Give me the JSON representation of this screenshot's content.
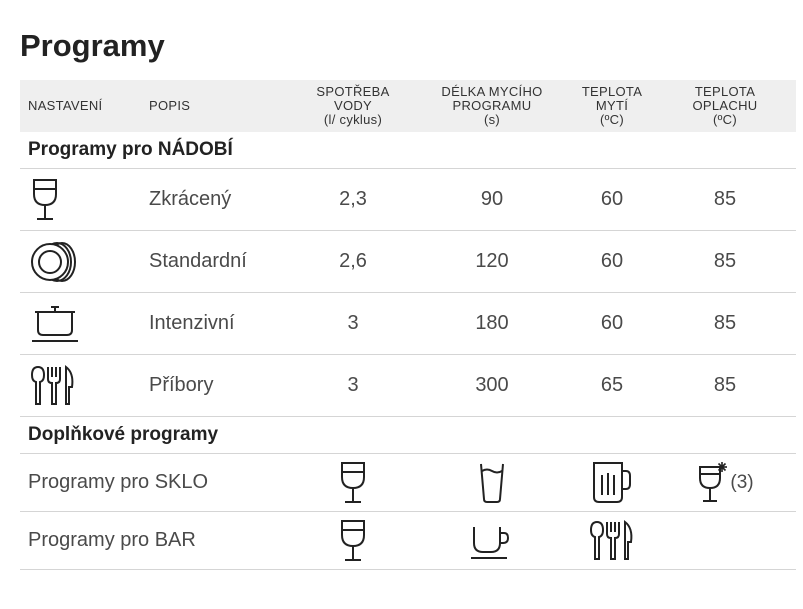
{
  "title": "Programy",
  "header": {
    "nastaveni": "NASTAVENÍ",
    "popis": "POPIS",
    "spotreba": [
      "SPOTŘEBA",
      "VODY",
      "(l/ cyklus)"
    ],
    "delka": [
      "DÉLKA MYCÍHO",
      "PROGRAMU",
      "(s)"
    ],
    "teplota_myti": [
      "TEPLOTA",
      "MYTÍ",
      "(ºC)"
    ],
    "teplota_oplachu": [
      "TEPLOTA",
      "OPLACHU",
      "(ºC)"
    ]
  },
  "section_dishes": "Programy pro NÁDOBÍ",
  "programs": [
    {
      "icon": "wine-glass-icon",
      "name": "Zkrácený",
      "water": "2,3",
      "duration": "90",
      "wash_temp": "60",
      "rinse_temp": "85"
    },
    {
      "icon": "plates-icon",
      "name": "Standardní",
      "water": "2,6",
      "duration": "120",
      "wash_temp": "60",
      "rinse_temp": "85"
    },
    {
      "icon": "pot-icon",
      "name": "Intenzivní",
      "water": "3",
      "duration": "180",
      "wash_temp": "60",
      "rinse_temp": "85"
    },
    {
      "icon": "cutlery-icon",
      "name": "Příbory",
      "water": "3",
      "duration": "300",
      "wash_temp": "65",
      "rinse_temp": "85"
    }
  ],
  "section_extra": "Doplňkové programy",
  "extra": [
    {
      "name": "Programy pro SKLO",
      "icons": [
        "wine-glass-icon",
        "tumbler-glass-icon",
        "beer-mug-icon",
        "wine-glass-cold-icon"
      ],
      "note": "(3)"
    },
    {
      "name": "Programy pro BAR",
      "icons": [
        "wine-glass-icon",
        "coffee-cup-icon",
        "cutlery-icon"
      ]
    }
  ]
}
